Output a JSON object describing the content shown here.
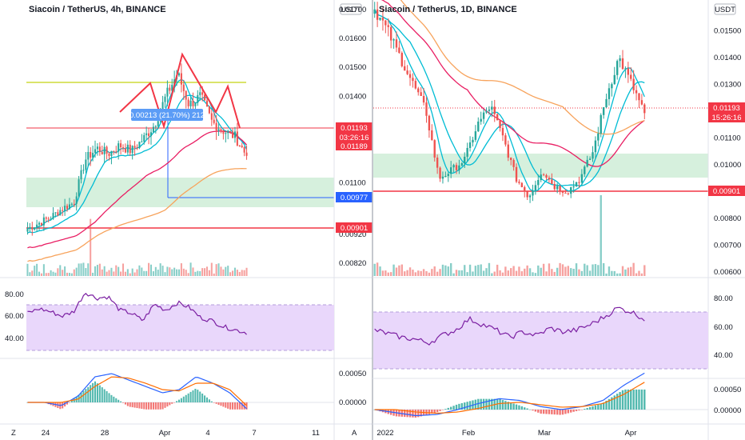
{
  "colors": {
    "up": "#26a69a",
    "down": "#ef5350",
    "rsi_line": "#7b1fa2",
    "rsi_band": "#e9d7fb",
    "macd": "#2962ff",
    "signal": "#ff6d00",
    "sma_orange": "#f7a35c",
    "sma_pink": "#e91e63",
    "ema_teal": "#00bcd4",
    "zone_green": "#d6f0dd",
    "red_line": "#f23645",
    "blue_line": "#2962ff",
    "yellow_line": "#cddc39"
  },
  "panels": {
    "left": {
      "title": "Siacoin / TetherUS, 4h, BINANCE",
      "currency": "USDT",
      "price_ticks": [
        "0.01700",
        "0.01600",
        "0.01500",
        "0.01400",
        "0.01300",
        "0.01100",
        "0.01040",
        "0.00920",
        "0.00820"
      ],
      "tags": {
        "last": "0.01193",
        "countdown": "03:26:16",
        "level_a": "0.01189",
        "level_b": "0.00977",
        "level_c": "0.00901"
      },
      "measure_label": "0.00213 (21.70%) 212",
      "rsi_ticks": [
        "80.00",
        "60.00",
        "40.00"
      ],
      "macd_ticks": [
        "0.00050",
        "0.00000"
      ],
      "time_ticks": [
        "24",
        "28",
        "Apr",
        "4",
        "7",
        "11"
      ],
      "left_corner": "Z"
    },
    "right": {
      "title": "Siacoin / TetherUS, 1D, BINANCE",
      "currency": "USDT",
      "price_ticks": [
        "0.01500",
        "0.01400",
        "0.01300",
        "0.01100",
        "0.01000",
        "0.00800",
        "0.00700",
        "0.00600"
      ],
      "tags": {
        "last": "0.01193",
        "countdown": "15:26:16",
        "level_a": "0.00901"
      },
      "rsi_ticks": [
        "80.00",
        "60.00",
        "40.00"
      ],
      "macd_ticks": [
        "0.00050",
        "0.00000"
      ],
      "time_ticks": [
        "2022",
        "Feb",
        "Mar",
        "Apr"
      ],
      "left_corner": "A"
    }
  },
  "chart_data": [
    {
      "type": "candlestick",
      "title": "Siacoin / TetherUS, 4h, BINANCE",
      "ylabel": "USDT",
      "ylim": [
        0.0079,
        0.0172
      ],
      "levels": [
        0.01193,
        0.01189,
        0.00977,
        0.00901
      ],
      "series_close_knots": [
        0.0094,
        0.0096,
        0.0098,
        0.0101,
        0.0103,
        0.0118,
        0.0122,
        0.012,
        0.0123,
        0.0121,
        0.0125,
        0.013,
        0.014,
        0.0148,
        0.0137,
        0.014,
        0.0131,
        0.0128,
        0.0126,
        0.01193
      ],
      "rsi_knots": [
        58,
        64,
        60,
        54,
        60,
        86,
        78,
        80,
        62,
        58,
        48,
        70,
        62,
        72,
        66,
        52,
        48,
        40,
        36,
        32
      ],
      "rsi_band": [
        30,
        70
      ],
      "macd_knots": [
        0,
        0,
        -5e-05,
        0.0001,
        0.0004,
        0.00045,
        0.00035,
        0.00025,
        0.00015,
        0.0002,
        0.0004,
        0.0003,
        0.00015,
        -0.0001
      ],
      "signal_knots": [
        0,
        0,
        0.0,
        5e-05,
        0.00025,
        0.0004,
        0.00038,
        0.0003,
        0.0002,
        0.00018,
        0.0003,
        0.0003,
        0.0002,
        -5e-05
      ]
    },
    {
      "type": "candlestick",
      "title": "Siacoin / TetherUS, 1D, BINANCE",
      "ylabel": "USDT",
      "ylim": [
        0.006,
        0.016
      ],
      "levels": [
        0.01193,
        0.00901
      ],
      "series_close_knots": [
        0.0158,
        0.015,
        0.014,
        0.013,
        0.012,
        0.0095,
        0.0098,
        0.0102,
        0.0115,
        0.0122,
        0.011,
        0.0095,
        0.0088,
        0.0098,
        0.0092,
        0.009,
        0.0095,
        0.0105,
        0.0125,
        0.014,
        0.013,
        0.01193
      ],
      "rsi_knots": [
        50,
        46,
        42,
        40,
        36,
        44,
        50,
        62,
        56,
        50,
        42,
        48,
        44,
        52,
        48,
        50,
        56,
        64,
        74,
        70,
        62
      ],
      "rsi_band": [
        30,
        70
      ],
      "macd_knots": [
        0,
        -5e-05,
        -0.0001,
        -8e-05,
        0,
        0.0001,
        0.00018,
        0.00015,
        5e-05,
        0.0,
        5e-05,
        0.00015,
        0.0004,
        0.0006
      ],
      "signal_knots": [
        0,
        0,
        -4e-05,
        -6e-05,
        -4e-05,
        2e-05,
        0.0001,
        0.00012,
        8e-05,
        4e-05,
        5e-05,
        0.0001,
        0.00025,
        0.00045
      ]
    }
  ]
}
